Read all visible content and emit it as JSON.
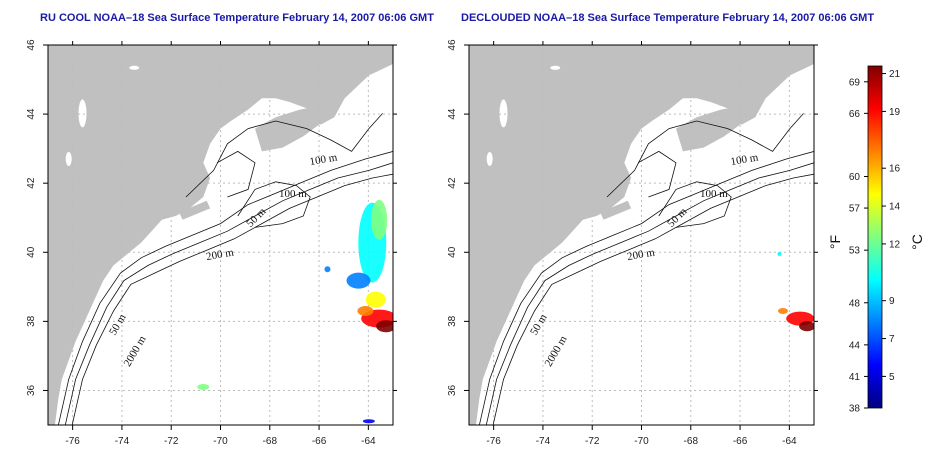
{
  "left_panel": {
    "title": "RU COOL NOAA–18 Sea Surface Temperature February 14, 2007 06:06 GMT",
    "x_ticks": [
      "-76",
      "-74",
      "-72",
      "-70",
      "-68",
      "-66",
      "-64"
    ],
    "y_ticks": [
      "36",
      "38",
      "40",
      "42",
      "44",
      "46"
    ],
    "contour_labels": [
      "100 m",
      "100 m",
      "50 m",
      "200 m",
      "50 m",
      "2000 m"
    ]
  },
  "right_panel": {
    "title": "DECLOUDED NOAA–18 Sea Surface Temperature February 14, 2007 06:06 GMT",
    "x_ticks": [
      "-76",
      "-74",
      "-72",
      "-70",
      "-68",
      "-66",
      "-64"
    ],
    "y_ticks": [
      "36",
      "38",
      "40",
      "42",
      "44",
      "46"
    ],
    "contour_labels": [
      "100 m",
      "100 m",
      "50 m",
      "200 m",
      "50 m",
      "2000 m"
    ]
  },
  "colorbar": {
    "fahrenheit_label": "°F",
    "celsius_label": "°C",
    "fahrenheit_ticks": [
      "38",
      "41",
      "44",
      "48",
      "53",
      "57",
      "60",
      "66",
      "69"
    ],
    "celsius_ticks": [
      "5",
      "7",
      "9",
      "12",
      "14",
      "16",
      "19",
      "21"
    ],
    "colors": [
      "#00007f",
      "#0000ff",
      "#0080ff",
      "#00ffff",
      "#80ff80",
      "#ffff00",
      "#ff8000",
      "#ff0000",
      "#7f0000"
    ]
  },
  "colors": {
    "land": "#c0c0c0",
    "ocean": "#ffffff",
    "title": "#1a1aa6",
    "contour": "#111111",
    "grid": "#bdbdbd"
  }
}
